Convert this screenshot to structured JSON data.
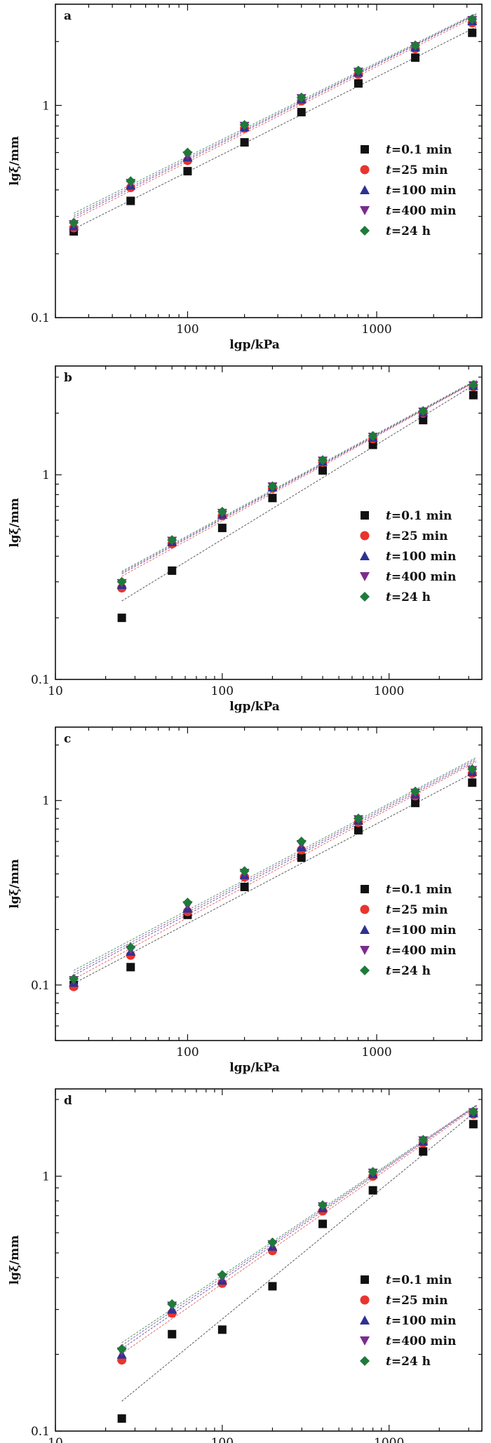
{
  "chart_data": [
    {
      "type": "scatter",
      "panel_label": "a",
      "xlabel": "lgp/kPa",
      "ylabel": "lgξ/mm",
      "xscale": "log",
      "yscale": "log",
      "xlim": [
        20,
        3600
      ],
      "ylim": [
        0.1,
        3.0
      ],
      "xticks": [
        "100",
        "1000"
      ],
      "yticks": [
        "0.1",
        "1"
      ],
      "legend_position": "right",
      "x": [
        25,
        50,
        100,
        200,
        400,
        800,
        1600,
        3200
      ],
      "series": [
        {
          "name": "t=0.1 min",
          "marker": "square",
          "color": "#111111",
          "values": [
            0.255,
            0.355,
            0.49,
            0.67,
            0.93,
            1.27,
            1.68,
            2.2
          ]
        },
        {
          "name": "t=25 min",
          "marker": "circle",
          "color": "#e8352e",
          "values": [
            0.265,
            0.41,
            0.55,
            0.78,
            1.05,
            1.4,
            1.85,
            2.45
          ]
        },
        {
          "name": "t=100 min",
          "marker": "triangle-up",
          "color": "#2f3192",
          "values": [
            0.27,
            0.42,
            0.57,
            0.79,
            1.07,
            1.43,
            1.88,
            2.5
          ]
        },
        {
          "name": "t=400 min",
          "marker": "triangle-down",
          "color": "#7b2b8f",
          "values": [
            0.275,
            0.43,
            0.58,
            0.8,
            1.08,
            1.44,
            1.9,
            2.52
          ]
        },
        {
          "name": "t=24 h",
          "marker": "diamond",
          "color": "#1f7a3a",
          "values": [
            0.28,
            0.44,
            0.6,
            0.81,
            1.09,
            1.46,
            1.92,
            2.55
          ]
        }
      ]
    },
    {
      "type": "scatter",
      "panel_label": "b",
      "xlabel": "lgp/kPa",
      "ylabel": "lgξ/mm",
      "xscale": "log",
      "yscale": "log",
      "xlim": [
        10,
        3600
      ],
      "ylim": [
        0.1,
        3.4
      ],
      "xticks": [
        "10",
        "100",
        "1000"
      ],
      "yticks": [
        "0.1",
        "1"
      ],
      "legend_position": "right",
      "x": [
        25,
        50,
        100,
        200,
        400,
        800,
        1600,
        3200
      ],
      "series": [
        {
          "name": "t=0.1 min",
          "marker": "square",
          "color": "#111111",
          "values": [
            0.2,
            0.34,
            0.55,
            0.77,
            1.05,
            1.4,
            1.85,
            2.45
          ]
        },
        {
          "name": "t=25 min",
          "marker": "circle",
          "color": "#e8352e",
          "values": [
            0.28,
            0.46,
            0.63,
            0.86,
            1.15,
            1.5,
            2.0,
            2.7
          ]
        },
        {
          "name": "t=100 min",
          "marker": "triangle-up",
          "color": "#2f3192",
          "values": [
            0.29,
            0.47,
            0.64,
            0.87,
            1.16,
            1.52,
            2.02,
            2.72
          ]
        },
        {
          "name": "t=400 min",
          "marker": "triangle-down",
          "color": "#7b2b8f",
          "values": [
            0.295,
            0.475,
            0.65,
            0.875,
            1.17,
            1.53,
            2.03,
            2.73
          ]
        },
        {
          "name": "t=24 h",
          "marker": "diamond",
          "color": "#1f7a3a",
          "values": [
            0.3,
            0.48,
            0.66,
            0.88,
            1.18,
            1.55,
            2.05,
            2.75
          ]
        }
      ]
    },
    {
      "type": "scatter",
      "panel_label": "c",
      "xlabel": "lgp/kPa",
      "ylabel": "lgξ/mm",
      "xscale": "log",
      "yscale": "log",
      "xlim": [
        20,
        3600
      ],
      "ylim": [
        0.05,
        2.5
      ],
      "xticks": [
        "100",
        "1000"
      ],
      "yticks": [
        "0.1",
        "1"
      ],
      "legend_position": "right",
      "x": [
        25,
        50,
        100,
        200,
        400,
        800,
        1600,
        3200
      ],
      "series": [
        {
          "name": "t=0.1 min",
          "marker": "square",
          "color": "#111111",
          "values": [
            0.1,
            0.125,
            0.24,
            0.34,
            0.49,
            0.69,
            0.97,
            1.25
          ]
        },
        {
          "name": "t=25 min",
          "marker": "circle",
          "color": "#e8352e",
          "values": [
            0.098,
            0.145,
            0.25,
            0.385,
            0.54,
            0.76,
            1.06,
            1.4
          ]
        },
        {
          "name": "t=100 min",
          "marker": "triangle-up",
          "color": "#2f3192",
          "values": [
            0.103,
            0.152,
            0.26,
            0.395,
            0.56,
            0.78,
            1.08,
            1.43
          ]
        },
        {
          "name": "t=400 min",
          "marker": "triangle-down",
          "color": "#7b2b8f",
          "values": [
            0.106,
            0.155,
            0.27,
            0.405,
            0.58,
            0.79,
            1.1,
            1.46
          ]
        },
        {
          "name": "t=24 h",
          "marker": "diamond",
          "color": "#1f7a3a",
          "values": [
            0.108,
            0.16,
            0.28,
            0.415,
            0.6,
            0.8,
            1.12,
            1.48
          ]
        }
      ]
    },
    {
      "type": "scatter",
      "panel_label": "d",
      "xlabel": "lgp/kPa",
      "ylabel": "lgξ/mm",
      "xscale": "log",
      "yscale": "log",
      "xlim": [
        10,
        3600
      ],
      "ylim": [
        0.1,
        2.2
      ],
      "xticks": [
        "10",
        "100",
        "1000"
      ],
      "yticks": [
        "0.1",
        "1"
      ],
      "legend_position": "right",
      "x": [
        25,
        50,
        100,
        200,
        400,
        800,
        1600,
        3200
      ],
      "series": [
        {
          "name": "t=0.1 min",
          "marker": "square",
          "color": "#111111",
          "values": [
            0.112,
            0.24,
            0.25,
            0.37,
            0.65,
            0.88,
            1.25,
            1.6
          ]
        },
        {
          "name": "t=25 min",
          "marker": "circle",
          "color": "#e8352e",
          "values": [
            0.19,
            0.29,
            0.38,
            0.51,
            0.73,
            1.0,
            1.35,
            1.75
          ]
        },
        {
          "name": "t=100 min",
          "marker": "triangle-up",
          "color": "#2f3192",
          "values": [
            0.2,
            0.3,
            0.39,
            0.53,
            0.75,
            1.02,
            1.37,
            1.77
          ]
        },
        {
          "name": "t=400 min",
          "marker": "triangle-down",
          "color": "#7b2b8f",
          "values": [
            0.205,
            0.31,
            0.4,
            0.54,
            0.76,
            1.03,
            1.38,
            1.78
          ]
        },
        {
          "name": "t=24 h",
          "marker": "diamond",
          "color": "#1f7a3a",
          "values": [
            0.21,
            0.315,
            0.41,
            0.55,
            0.77,
            1.04,
            1.39,
            1.79
          ]
        }
      ]
    }
  ]
}
